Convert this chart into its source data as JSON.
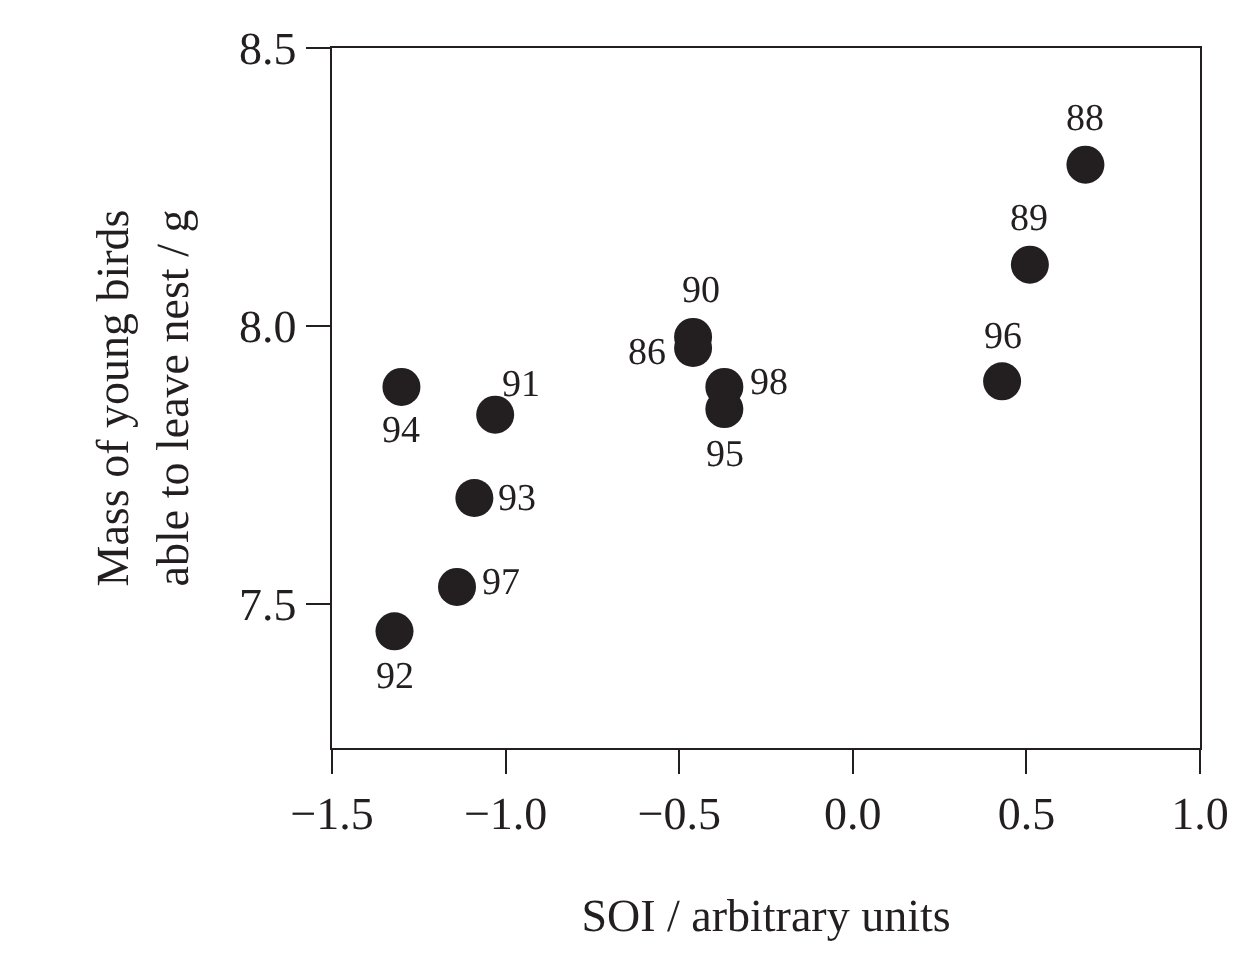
{
  "chart_data": {
    "type": "scatter",
    "xlabel": "SOI / arbitrary units",
    "ylabel": "Mass of young birds\nable to leave nest / g",
    "x": [
      0.67,
      0.51,
      0.43,
      -0.46,
      -0.46,
      -0.37,
      -0.37,
      -1.3,
      -1.03,
      -1.09,
      -1.14,
      -1.32
    ],
    "series": [
      {
        "color": "#231f20",
        "values": [
          8.29,
          8.11,
          7.9,
          7.98,
          7.96,
          7.89,
          7.85,
          7.89,
          7.84,
          7.69,
          7.53,
          7.45
        ]
      }
    ],
    "annotations": [
      {
        "text": "88",
        "x": 0.67,
        "y": 8.29
      },
      {
        "text": "89",
        "x": 0.51,
        "y": 8.11
      },
      {
        "text": "96",
        "x": 0.43,
        "y": 7.9
      },
      {
        "text": "90",
        "x": -0.46,
        "y": 7.98
      },
      {
        "text": "86",
        "x": -0.46,
        "y": 7.96
      },
      {
        "text": "98",
        "x": -0.37,
        "y": 7.89
      },
      {
        "text": "95",
        "x": -0.37,
        "y": 7.85
      },
      {
        "text": "94",
        "x": -1.3,
        "y": 7.89
      },
      {
        "text": "91",
        "x": -1.03,
        "y": 7.84
      },
      {
        "text": "93",
        "x": -1.09,
        "y": 7.69
      },
      {
        "text": "97",
        "x": -1.14,
        "y": 7.53
      },
      {
        "text": "92",
        "x": -1.32,
        "y": 7.45
      }
    ],
    "xlim": [
      -1.5,
      1.0
    ],
    "ylim": [
      7.24,
      8.5
    ],
    "xticks": [
      {
        "value": -1.5,
        "label": "−1.5"
      },
      {
        "value": -1.0,
        "label": "−1.0"
      },
      {
        "value": -0.5,
        "label": "−0.5"
      },
      {
        "value": 0.0,
        "label": "0.0"
      },
      {
        "value": 0.5,
        "label": "0.5"
      },
      {
        "value": 1.0,
        "label": "1.0"
      }
    ],
    "yticks": [
      7.5,
      {
        "value": 8.0,
        "label": "8.0"
      },
      8.5
    ],
    "marker": "circle"
  }
}
